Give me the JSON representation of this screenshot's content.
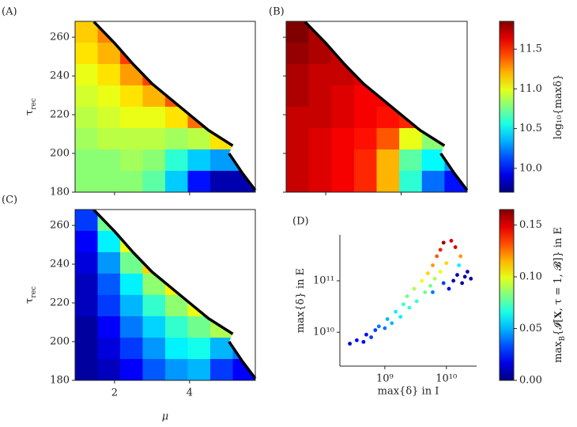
{
  "chart_data": [
    {
      "type": "heatmap",
      "label": "(A)",
      "ylabel": {
        "text": "τ",
        "sub": "rec"
      },
      "xlim": [
        0.95,
        5.75
      ],
      "ylim": [
        180,
        268.2
      ],
      "xticks": [
        2,
        4
      ],
      "yticks": [
        180,
        200,
        220,
        240,
        260
      ],
      "z": [
        [
          11.15,
          11.3,
          null,
          null,
          null,
          null,
          null,
          null
        ],
        [
          11.1,
          11.2,
          11.45,
          null,
          null,
          null,
          null,
          null
        ],
        [
          11.0,
          11.1,
          11.25,
          11.45,
          null,
          null,
          null,
          null
        ],
        [
          10.95,
          11.0,
          11.1,
          11.2,
          11.4,
          null,
          null,
          null
        ],
        [
          10.9,
          10.95,
          11.0,
          11.0,
          11.1,
          11.35,
          null,
          null
        ],
        [
          10.85,
          10.9,
          10.9,
          10.9,
          10.85,
          10.9,
          11.1,
          null
        ],
        [
          10.8,
          10.8,
          10.85,
          10.8,
          10.6,
          10.4,
          10.3,
          10.3
        ],
        [
          10.8,
          10.8,
          10.8,
          10.7,
          10.4,
          10.0,
          9.8,
          9.8
        ]
      ],
      "boundary": {
        "x": [
          1.45,
          2,
          2.5,
          3,
          3.5,
          4,
          4.5,
          5.15,
          null,
          5.05,
          5.4,
          5.75
        ],
        "y": [
          268,
          257,
          246,
          236,
          228,
          220,
          212,
          204,
          null,
          200,
          190,
          181
        ]
      }
    },
    {
      "type": "heatmap",
      "label": "(B)",
      "xlim": [
        0.95,
        5.75
      ],
      "ylim": [
        180,
        268.2
      ],
      "xticks": [
        2,
        4
      ],
      "yticks": [
        180,
        200,
        220,
        240,
        260
      ],
      "z": [
        [
          11.85,
          11.75,
          null,
          null,
          null,
          null,
          null,
          null
        ],
        [
          11.8,
          11.75,
          11.7,
          null,
          null,
          null,
          null,
          null
        ],
        [
          11.75,
          11.7,
          11.7,
          11.65,
          null,
          null,
          null,
          null
        ],
        [
          11.75,
          11.7,
          11.65,
          11.6,
          11.6,
          null,
          null,
          null
        ],
        [
          11.7,
          11.7,
          11.65,
          11.6,
          11.55,
          11.5,
          null,
          null
        ],
        [
          11.7,
          11.65,
          11.6,
          11.55,
          11.4,
          11.0,
          10.8,
          null
        ],
        [
          11.7,
          11.65,
          11.6,
          11.5,
          11.2,
          10.7,
          10.5,
          10.3
        ],
        [
          11.7,
          11.65,
          11.6,
          11.5,
          11.2,
          10.6,
          10.2,
          10.0
        ]
      ],
      "boundary": {
        "x": [
          1.45,
          2,
          2.5,
          3,
          3.5,
          4,
          4.5,
          5.15,
          null,
          5.05,
          5.4,
          5.75
        ],
        "y": [
          268,
          257,
          246,
          236,
          228,
          220,
          212,
          204,
          null,
          200,
          190,
          181
        ]
      },
      "colorbar": {
        "label": "log₁₀{maxδ}",
        "lim": [
          9.7,
          11.85
        ],
        "ticks": [
          {
            "value": 10,
            "label": "10.0"
          },
          10.5,
          {
            "value": 11,
            "label": "11.0"
          },
          11.5
        ]
      }
    },
    {
      "type": "heatmap",
      "label": "(C)",
      "ylabel": {
        "text": "τ",
        "sub": "rec"
      },
      "xlabel": "μ",
      "xlim": [
        0.95,
        5.75
      ],
      "ylim": [
        180,
        268.2
      ],
      "xticks": [
        2,
        4
      ],
      "yticks": [
        180,
        200,
        220,
        240,
        260
      ],
      "z": [
        [
          0.03,
          0.08,
          null,
          null,
          null,
          null,
          null,
          null
        ],
        [
          0.02,
          0.06,
          0.1,
          null,
          null,
          null,
          null,
          null
        ],
        [
          0.015,
          0.045,
          0.08,
          0.11,
          null,
          null,
          null,
          null
        ],
        [
          0.01,
          0.035,
          0.06,
          0.085,
          0.105,
          null,
          null,
          null
        ],
        [
          0.01,
          0.03,
          0.05,
          0.07,
          0.085,
          0.1,
          null,
          null
        ],
        [
          0.005,
          0.02,
          0.04,
          0.055,
          0.07,
          0.08,
          0.09,
          null
        ],
        [
          0.005,
          0.015,
          0.03,
          0.045,
          0.06,
          0.065,
          0.05,
          0.04
        ],
        [
          0.005,
          0.01,
          0.02,
          0.035,
          0.045,
          0.05,
          0.03,
          0.02
        ]
      ],
      "boundary": {
        "x": [
          1.45,
          2,
          2.5,
          3,
          3.5,
          4,
          4.5,
          5.15,
          null,
          5.05,
          5.4,
          5.75
        ],
        "y": [
          268,
          257,
          246,
          236,
          228,
          220,
          212,
          204,
          null,
          200,
          190,
          181
        ]
      }
    },
    {
      "type": "scatter",
      "label": "(D)",
      "xlabel": "max{δ} in I",
      "ylabel": "max{δ} in E",
      "xscale": "log",
      "yscale": "log",
      "xlim": [
        186000000,
        31000000000
      ],
      "ylim": [
        2200000000,
        780000000000
      ],
      "xticks": [
        {
          "value": 1000000000,
          "label": "10⁹"
        },
        {
          "value": 10000000000,
          "label": "10¹⁰"
        }
      ],
      "yticks": [
        {
          "value": 10000000000,
          "label": "10¹⁰"
        },
        {
          "value": 100000000000,
          "label": "10¹¹"
        }
      ],
      "x": [
        270000000,
        350000000,
        450000000,
        500000000,
        600000000,
        700000000,
        800000000,
        1000000000,
        1100000000,
        1300000000,
        1500000000,
        1800000000,
        2000000000,
        2300000000,
        2500000000,
        3000000000,
        3300000000,
        4000000000,
        4500000000,
        5000000000,
        5500000000,
        6000000000,
        6500000000,
        7000000000,
        8000000000,
        8000000000,
        9000000000,
        10000000000,
        11000000000,
        12000000000,
        13000000000,
        14000000000,
        15000000000,
        17000000000,
        18000000000,
        20000000000,
        22000000000,
        25000000000,
        16000000000,
        9000000000,
        6000000000
      ],
      "y": [
        6000000000,
        7000000000,
        6500000000,
        9000000000,
        8000000000,
        11000000000,
        13000000000,
        12000000000,
        18000000000,
        15000000000,
        25000000000,
        20000000000,
        35000000000,
        50000000000,
        30000000000,
        70000000000,
        40000000000,
        100000000000,
        60000000000,
        140000000000,
        80000000000,
        200000000000,
        110000000000,
        300000000000,
        150000000000,
        400000000000,
        550000000000,
        220000000000,
        70000000000,
        600000000000,
        100000000000,
        450000000000,
        130000000000,
        300000000000,
        90000000000,
        120000000000,
        150000000000,
        110000000000,
        200000000000,
        90000000000,
        60000000000
      ],
      "c": [
        0.01,
        0.02,
        0.02,
        0.02,
        0.03,
        0.03,
        0.04,
        0.04,
        0.05,
        0.05,
        0.06,
        0.06,
        0.07,
        0.08,
        0.07,
        0.09,
        0.07,
        0.1,
        0.08,
        0.11,
        0.08,
        0.12,
        0.09,
        0.13,
        0.1,
        0.14,
        0.16,
        0.11,
        0.02,
        0.15,
        0.01,
        0.15,
        0.005,
        0.12,
        0.005,
        0.005,
        0.01,
        0.005,
        0.06,
        0.03,
        0.04
      ],
      "colorbar": {
        "label": {
          "text": "max",
          "sub": "B",
          "rest": "{𝓘[𝐗, τ = 1, 𝓑]} in E"
        },
        "lim": [
          0,
          0.165
        ],
        "ticks": [
          {
            "value": 0,
            "label": "0.00"
          },
          0.05,
          {
            "value": 0.1,
            "label": "0.10"
          },
          0.15
        ]
      }
    }
  ]
}
